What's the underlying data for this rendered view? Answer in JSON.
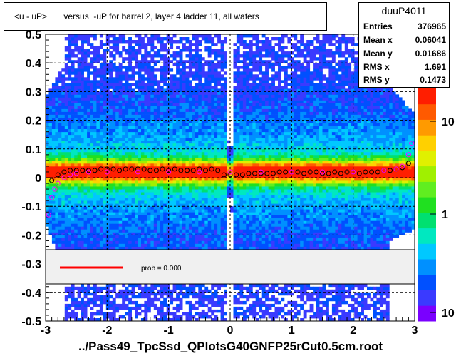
{
  "title": "<u - uP>       versus  -uP for barrel 2, layer 4 ladder 11, all wafers",
  "stats": {
    "name": "duuP4011",
    "rows": [
      {
        "label": "Entries",
        "value": "376965"
      },
      {
        "label": "Mean x",
        "value": "0.06041"
      },
      {
        "label": "Mean y",
        "value": "0.01686"
      },
      {
        "label": "RMS x",
        "value": "1.691"
      },
      {
        "label": "RMS y",
        "value": "0.1473"
      }
    ]
  },
  "legend": {
    "label": "prob = 0.000",
    "line_color": "#ff0000"
  },
  "xlabel": "../Pass49_TpcSsd_QPlotsG40GNFP25rCut0.5cm.root",
  "chart_data": {
    "type": "heatmap",
    "title": "<u - uP>       versus  -uP for barrel 2, layer 4 ladder 11, all wafers",
    "xlabel": "../Pass49_TpcSsd_QPlotsG40GNFP25rCut0.5cm.root",
    "ylabel": "",
    "xlim": [
      -3,
      3
    ],
    "ylim": [
      -0.5,
      0.5
    ],
    "x_ticks": [
      "-3",
      "-2",
      "-1",
      "0",
      "1",
      "2",
      "3"
    ],
    "y_ticks": [
      "-0.5",
      "-0.4",
      "-0.3",
      "-0.2",
      "-0.1",
      "0",
      "0.1",
      "0.2",
      "0.3",
      "0.4",
      "0.5"
    ],
    "color_scale": {
      "log": true,
      "ticks": [
        "10",
        "1",
        "10"
      ]
    },
    "grid": true,
    "legend_placement": "lower-left",
    "band_center": 0.02,
    "series": [
      {
        "name": "mean",
        "marker": "open-circle",
        "color": "#000000",
        "x": [
          -2.9,
          -2.8,
          -2.7,
          -2.6,
          -2.5,
          -2.4,
          -2.3,
          -2.2,
          -2.1,
          -2.0,
          -1.9,
          -1.8,
          -1.7,
          -1.6,
          -1.5,
          -1.4,
          -1.3,
          -1.2,
          -1.1,
          -1.0,
          -0.9,
          -0.8,
          -0.7,
          -0.6,
          -0.5,
          -0.4,
          -0.3,
          -0.2,
          -0.1,
          0.0,
          0.1,
          0.2,
          0.3,
          0.4,
          0.5,
          0.6,
          0.7,
          0.8,
          0.9,
          1.0,
          1.1,
          1.2,
          1.3,
          1.4,
          1.5,
          1.6,
          1.7,
          1.8,
          1.9,
          2.0,
          2.1,
          2.2,
          2.3,
          2.4,
          2.5,
          2.6,
          2.7,
          2.8,
          2.9
        ],
        "y": [
          -0.01,
          0.01,
          0.02,
          0.025,
          0.025,
          0.025,
          0.025,
          0.025,
          0.03,
          0.03,
          0.03,
          0.025,
          0.03,
          0.03,
          0.03,
          0.03,
          0.025,
          0.025,
          0.03,
          0.025,
          0.03,
          0.025,
          0.025,
          0.025,
          0.03,
          0.025,
          0.03,
          0.025,
          0.01,
          0.01,
          0.01,
          0.01,
          0.015,
          0.015,
          0.015,
          0.015,
          0.015,
          0.02,
          0.02,
          0.02,
          0.02,
          0.015,
          0.02,
          0.02,
          0.015,
          0.015,
          0.02,
          0.015,
          0.02,
          0.02,
          0.015,
          0.02,
          0.02,
          0.02,
          0.025,
          0.025,
          0.03,
          0.035,
          0.05
        ]
      },
      {
        "name": "fit",
        "marker": "open-circle",
        "color": "#ff00ff",
        "x": [
          -2.95,
          -2.9,
          -2.85,
          -2.8,
          -2.7,
          -2.6,
          -2.5,
          -2.3,
          -2.0,
          -1.5,
          -1.0,
          -0.5,
          0.0,
          0.5,
          1.0,
          1.5,
          2.0,
          2.5,
          2.7,
          2.8,
          2.9,
          2.95
        ],
        "y": [
          -0.13,
          -0.07,
          -0.04,
          -0.02,
          0.0,
          0.01,
          0.015,
          0.02,
          0.02,
          0.02,
          0.02,
          0.02,
          0.02,
          0.02,
          0.02,
          0.02,
          0.02,
          0.025,
          0.03,
          0.04,
          0.08,
          0.12
        ]
      }
    ]
  }
}
